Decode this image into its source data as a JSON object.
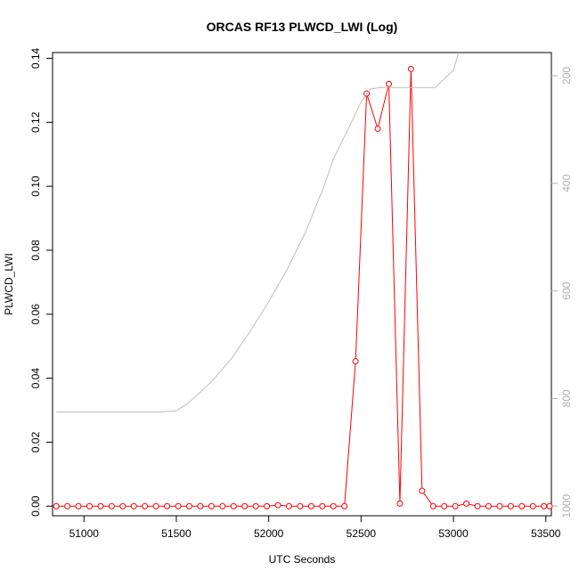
{
  "chart_data": {
    "type": "line",
    "title": "ORCAS RF13 PLWCD_LWI (Log)",
    "xlabel": "UTC Seconds",
    "ylabel": "PLWCD_LWI",
    "xlim": [
      50830,
      53530
    ],
    "ylim": [
      -0.003,
      0.1418
    ],
    "y2lim": [
      1018,
      157
    ],
    "y2_reversed": true,
    "grid": false,
    "colors": {
      "series": "#ff0000",
      "secondary": "#bebebe",
      "axis": "#000000",
      "axis_right": "#b0b0b0"
    },
    "x_ticks": [
      51000,
      51500,
      52000,
      52500,
      53000,
      53500
    ],
    "y_ticks": [
      0.0,
      0.02,
      0.04,
      0.06,
      0.08,
      0.1,
      0.12,
      0.14
    ],
    "y_tick_labels": [
      "0.00",
      "0.02",
      "0.04",
      "0.06",
      "0.08",
      "0.10",
      "0.12",
      "0.14"
    ],
    "y2_ticks": [
      200,
      400,
      600,
      800,
      1000
    ],
    "series": [
      {
        "axis": "left",
        "style": "line+points",
        "x": [
          50850,
          50910,
          50970,
          51030,
          51090,
          51150,
          51210,
          51270,
          51330,
          51390,
          51450,
          51510,
          51570,
          51630,
          51690,
          51750,
          51810,
          51870,
          51930,
          51990,
          52050,
          52110,
          52170,
          52230,
          52290,
          52350,
          52410,
          52470,
          52530,
          52590,
          52650,
          52710,
          52770,
          52830,
          52890,
          52950,
          53010,
          53070,
          53130,
          53190,
          53250,
          53310,
          53370,
          53430,
          53490,
          53520
        ],
        "y": [
          0,
          0,
          0,
          0,
          0,
          0,
          0,
          0,
          0,
          0,
          0,
          0,
          0,
          0,
          0,
          0,
          0,
          0,
          0,
          0,
          0.0003,
          0,
          0,
          0,
          0,
          0,
          0,
          0.0453,
          0.129,
          0.118,
          0.132,
          0.0008,
          0.1367,
          0.0048,
          0,
          0,
          0,
          0.0008,
          0,
          0,
          0,
          0,
          0,
          0,
          0,
          0
        ]
      },
      {
        "axis": "right",
        "style": "line",
        "x": [
          50850,
          51000,
          51200,
          51400,
          51500,
          51550,
          51600,
          51700,
          51800,
          51900,
          52000,
          52100,
          52200,
          52300,
          52350,
          52400,
          52450,
          52500,
          52550,
          52600,
          52700,
          52800,
          52900,
          53000,
          53050
        ],
        "y": [
          825,
          825,
          825,
          825,
          823,
          812,
          798,
          765,
          725,
          675,
          620,
          560,
          490,
          405,
          355,
          320,
          285,
          248,
          225,
          222,
          222,
          222,
          222,
          190,
          130
        ]
      }
    ]
  }
}
